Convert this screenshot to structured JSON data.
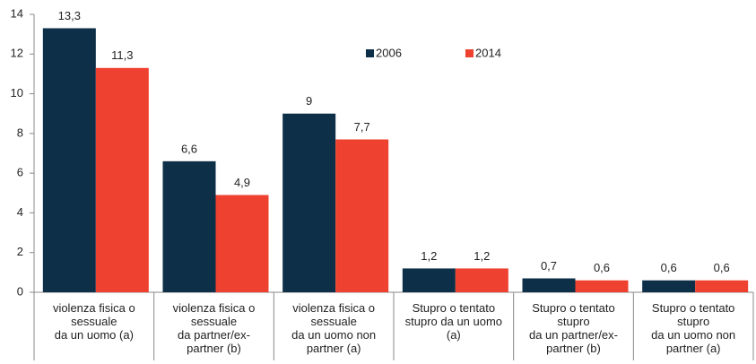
{
  "chart_data": {
    "type": "bar",
    "categories": [
      "violenza fisica o\nsessuale\nda un uomo (a)",
      "violenza fisica o\nsessuale\nda partner/ex-\npartner (b)",
      "violenza fisica o\nsessuale\nda un uomo non\npartner (a)",
      "Stupro o tentato\nstupro da un uomo\n(a)",
      "Stupro o tentato\nstupro\nda un partner/ex-\npartner (b)",
      "Stupro o tentato\nstupro\nda un uomo non\npartner (a)"
    ],
    "series": [
      {
        "name": "2006",
        "color": "#0d2f47",
        "values": [
          13.3,
          6.6,
          9,
          1.2,
          0.7,
          0.6
        ],
        "value_labels": [
          "13,3",
          "6,6",
          "9",
          "1,2",
          "0,7",
          "0,6"
        ]
      },
      {
        "name": "2014",
        "color": "#ef4130",
        "values": [
          11.3,
          4.9,
          7.7,
          1.2,
          0.6,
          0.6
        ],
        "value_labels": [
          "11,3",
          "4,9",
          "7,7",
          "1,2",
          "0,6",
          "0,6"
        ]
      }
    ],
    "ylim": [
      0,
      14
    ],
    "yticks": [
      0,
      2,
      4,
      6,
      8,
      10,
      12,
      14
    ],
    "grid": false,
    "legend": "top-center"
  }
}
